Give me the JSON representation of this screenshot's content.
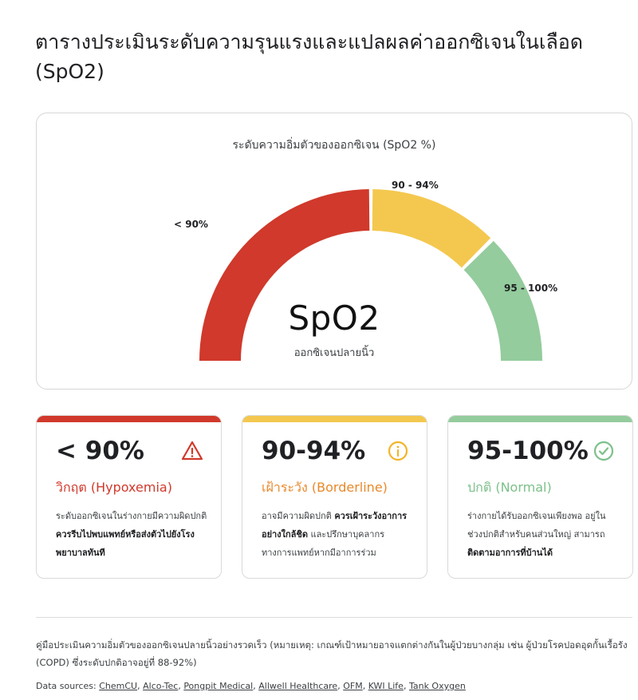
{
  "title": "ตารางประเมินระดับความรุนแรงและแปลผลค่าออกซิเจนในเลือด (SpO2)",
  "gauge": {
    "heading": "ระดับความอิ่มตัวของออกซิเจน (SpO2 %)",
    "center_title": "SpO2",
    "center_subtitle": "ออกซิเจนปลายนิ้ว",
    "segments": [
      {
        "label": "< 90%",
        "color": "#d0392b"
      },
      {
        "label": "90 - 94%",
        "color": "#f4c84f"
      },
      {
        "label": "95 - 100%",
        "color": "#94cc9d"
      }
    ]
  },
  "cards": [
    {
      "range": "< 90%",
      "status": "วิกฤต (Hypoxemia)",
      "status_color": "#d0392b",
      "bar_color": "#d0392b",
      "icon": "warning-triangle-icon",
      "desc_1": "ระดับออกซิเจนในร่างกายมีความผิดปกติ ",
      "desc_bold": "ควรรีบไปพบแพทย์หรือส่งตัวไปยังโรงพยาบาลทันที",
      "desc_2": ""
    },
    {
      "range": "90-94%",
      "status": "เฝ้าระวัง (Borderline)",
      "status_color": "#e8892b",
      "bar_color": "#f4c84f",
      "icon": "info-circle-icon",
      "desc_1": "อาจมีความผิดปกติ ",
      "desc_bold": "ควรเฝ้าระวังอาการอย่างใกล้ชิด",
      "desc_2": " และปรึกษาบุคลากรทางการแพทย์หากมีอาการร่วม"
    },
    {
      "range": "95-100%",
      "status": "ปกติ (Normal)",
      "status_color": "#7cc08a",
      "bar_color": "#94cc9d",
      "icon": "check-circle-icon",
      "desc_1": "ร่างกายได้รับออกซิเจนเพียงพอ อยู่ในช่วงปกติสำหรับคนส่วนใหญ่ สามารถ",
      "desc_bold": "ติดตามอาการที่บ้านได้",
      "desc_2": ""
    }
  ],
  "footnote": "คู่มือประเมินความอิ่มตัวของออกซิเจนปลายนิ้วอย่างรวดเร็ว (หมายเหตุ: เกณฑ์เป้าหมายอาจแตกต่างกันในผู้ป่วยบางกลุ่ม เช่น ผู้ป่วยโรคปอดอุดกั้นเรื้อรัง (COPD) ซึ่งระดับปกติอาจอยู่ที่ 88-92%)",
  "sources": {
    "prefix": "Data sources: ",
    "links": [
      "ChemCU",
      "Alco-Tec",
      "Pongpit Medical",
      "Allwell Healthcare",
      "OFM",
      "KWI Life",
      "Tank Oxygen"
    ]
  }
}
